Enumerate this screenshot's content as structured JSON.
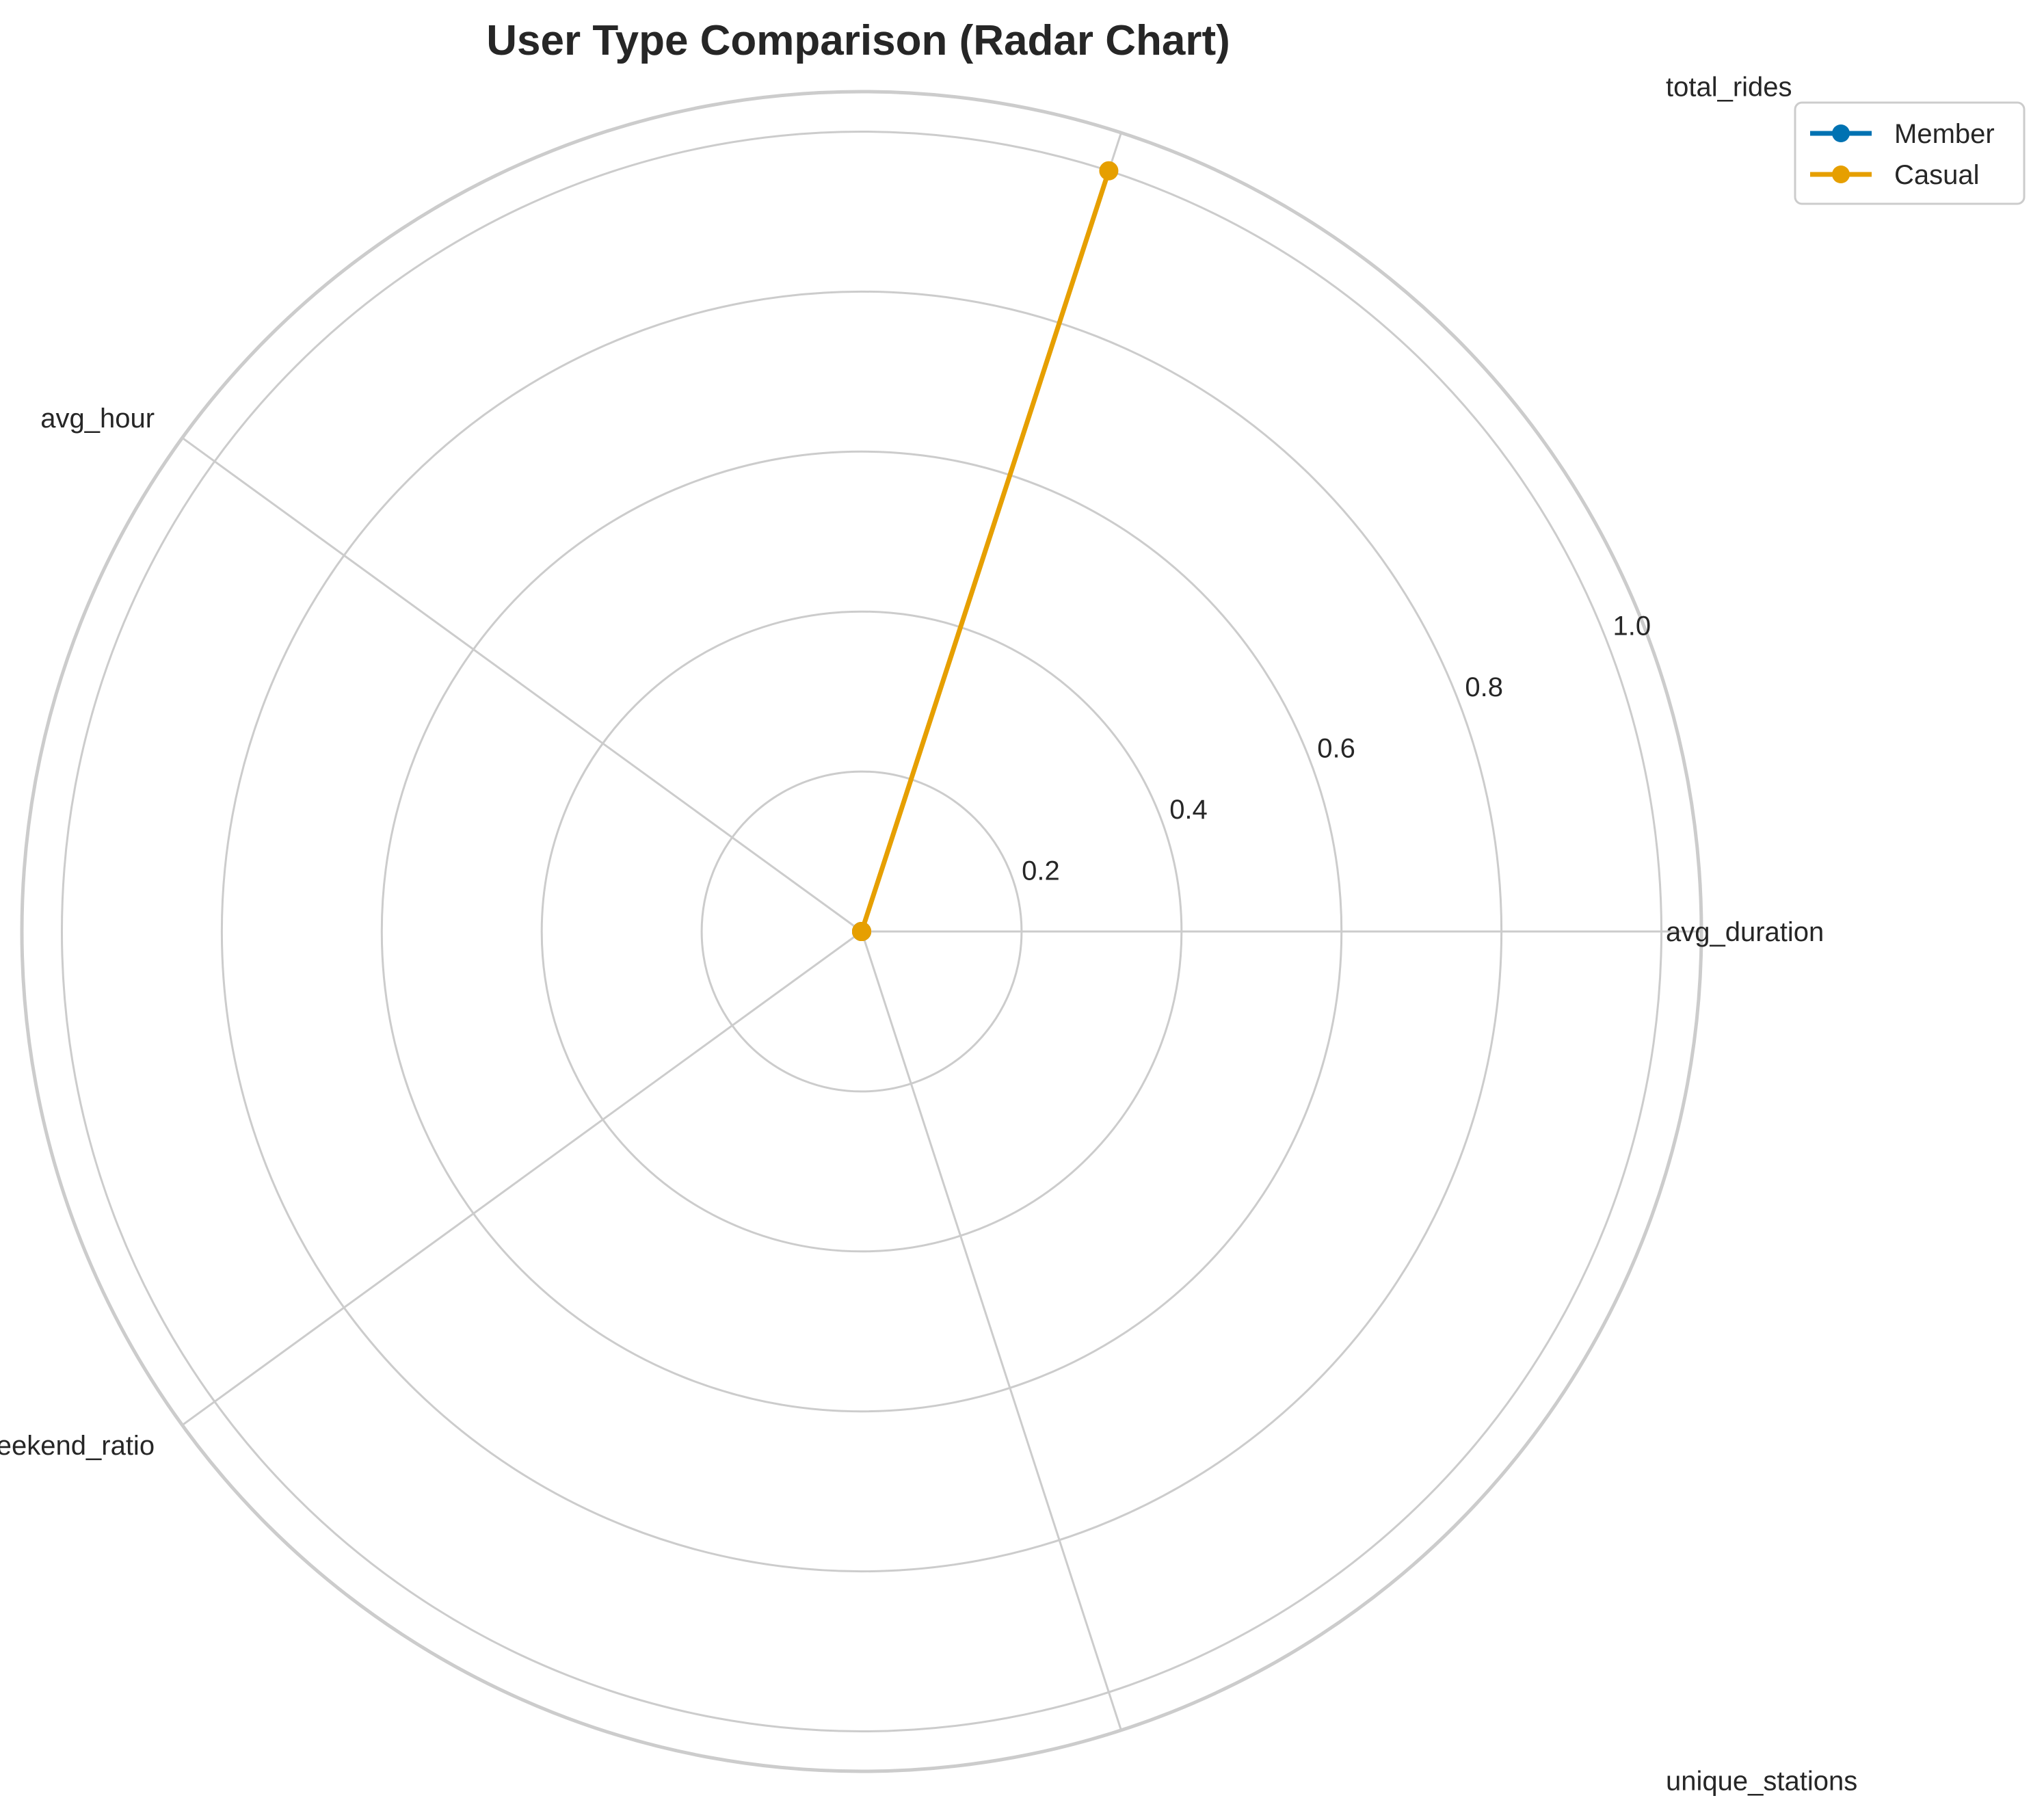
{
  "chart_data": {
    "type": "radar",
    "title": "User Type Comparison (Radar Chart)",
    "categories": [
      "avg_duration",
      "total_rides",
      "avg_hour",
      "weekend_ratio",
      "unique_stations"
    ],
    "rlim": [
      0,
      1.05
    ],
    "rticks": [
      0.2,
      0.4,
      0.6,
      0.8,
      1.0
    ],
    "rtick_labels": [
      "0.2",
      "0.4",
      "0.6",
      "0.8",
      "1.0"
    ],
    "grid": true,
    "legend_position": "top-right",
    "series": [
      {
        "name": "Member",
        "color": "#0072b2",
        "values": [
          0.0,
          0.0,
          0.0,
          0.0,
          0.0
        ]
      },
      {
        "name": "Casual",
        "color": "#e69f00",
        "values": [
          0.0,
          1.0,
          0.0,
          0.0,
          0.0
        ]
      }
    ]
  }
}
